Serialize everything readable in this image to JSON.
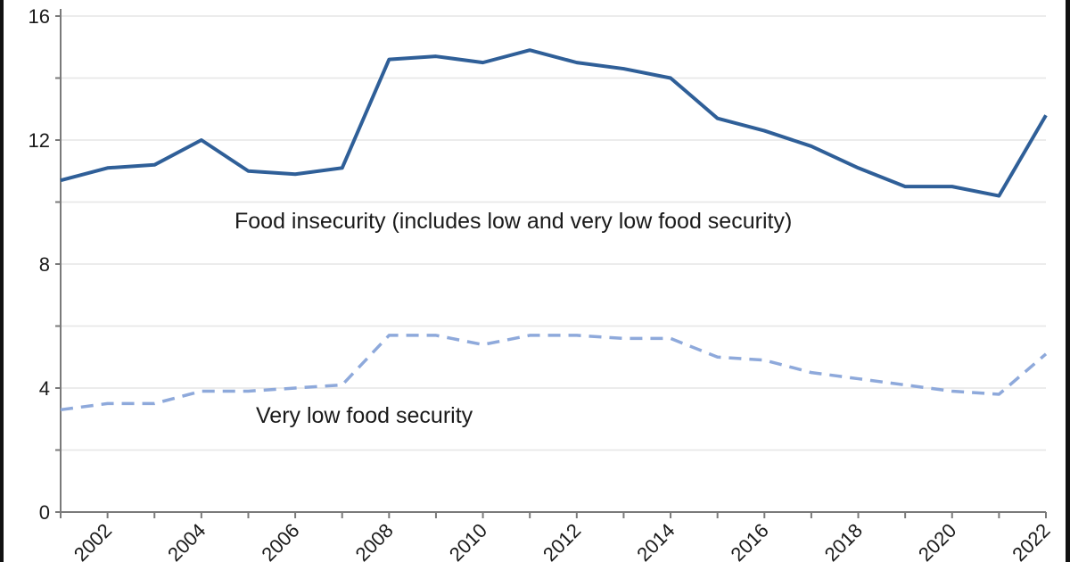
{
  "chart_data": {
    "type": "line",
    "title": "",
    "xlabel": "",
    "ylabel": "",
    "x": [
      2001,
      2002,
      2003,
      2004,
      2005,
      2006,
      2007,
      2008,
      2009,
      2010,
      2011,
      2012,
      2013,
      2014,
      2015,
      2016,
      2017,
      2018,
      2019,
      2020,
      2021,
      2022
    ],
    "xlim": [
      2001,
      2022
    ],
    "ylim": [
      0,
      16
    ],
    "y_ticks": [
      0,
      4,
      8,
      12,
      16
    ],
    "y_minor_ticks": [
      2,
      6,
      10,
      14
    ],
    "y_tick_labels": [
      "0",
      "4",
      "8",
      "12",
      "16"
    ],
    "x_tick_labels": [
      "2002",
      "2004",
      "2006",
      "2008",
      "2010",
      "2012",
      "2014",
      "2016",
      "2018",
      "2020",
      "2022"
    ],
    "grid": true,
    "series": [
      {
        "name": "Food insecurity (includes low and very low food security)",
        "style": "solid",
        "color": "#2f5f98",
        "values": [
          10.7,
          11.1,
          11.2,
          12.0,
          11.0,
          10.9,
          11.1,
          14.6,
          14.7,
          14.5,
          14.9,
          14.5,
          14.3,
          14.0,
          12.7,
          12.3,
          11.8,
          11.1,
          10.5,
          10.5,
          10.2,
          12.8
        ]
      },
      {
        "name": "Very low food security",
        "style": "dashed",
        "color": "#8ea9db",
        "values": [
          3.3,
          3.5,
          3.5,
          3.9,
          3.9,
          4.0,
          4.1,
          5.7,
          5.7,
          5.4,
          5.7,
          5.7,
          5.6,
          5.6,
          5.0,
          4.9,
          4.5,
          4.3,
          4.1,
          3.9,
          3.8,
          5.1
        ]
      }
    ],
    "annotations": [
      {
        "text": "Food insecurity (includes low and very low food security)",
        "series": 0
      },
      {
        "text": "Very low food security",
        "series": 1
      }
    ],
    "legend": "inline-annotations"
  }
}
